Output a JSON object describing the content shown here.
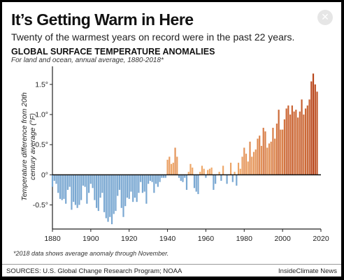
{
  "title": "It’s Getting Warm in Here",
  "subtitle": "Twenty of the warmest years on record were in the past 22 years.",
  "close_button": {
    "label": "✕",
    "icon": "close-icon"
  },
  "footnote": "*2018 data shows average anomaly through November.",
  "sources": "SOURCES: U.S. Global Change Research Program; NOAA",
  "credit": "InsideClimate News",
  "colors": {
    "cool": "#7aa8d2",
    "warm_light": "#f4b171",
    "warm_dark": "#b8451a"
  },
  "chart_data": {
    "type": "bar",
    "title": "GLOBAL SURFACE TEMPERATURE ANOMALIES",
    "subtitle": "For land and ocean, annual average, 1880-2018*",
    "ylabel": "Temperature difference from 20th century average (°F)",
    "xlabel": "",
    "xlim": [
      1880,
      2020
    ],
    "ylim": [
      -0.9,
      1.8
    ],
    "xticks": [
      1880,
      1900,
      1920,
      1940,
      1960,
      1980,
      2000,
      2020
    ],
    "yticks": [
      -0.5,
      0,
      0.5,
      1.0,
      1.5
    ],
    "ytick_labels": [
      "-0.5°",
      "0°",
      "0.5°",
      "1.0°",
      "1.5°"
    ],
    "grid": false,
    "x": [
      1880,
      1881,
      1882,
      1883,
      1884,
      1885,
      1886,
      1887,
      1888,
      1889,
      1890,
      1891,
      1892,
      1893,
      1894,
      1895,
      1896,
      1897,
      1898,
      1899,
      1900,
      1901,
      1902,
      1903,
      1904,
      1905,
      1906,
      1907,
      1908,
      1909,
      1910,
      1911,
      1912,
      1913,
      1914,
      1915,
      1916,
      1917,
      1918,
      1919,
      1920,
      1921,
      1922,
      1923,
      1924,
      1925,
      1926,
      1927,
      1928,
      1929,
      1930,
      1931,
      1932,
      1933,
      1934,
      1935,
      1936,
      1937,
      1938,
      1939,
      1940,
      1941,
      1942,
      1943,
      1944,
      1945,
      1946,
      1947,
      1948,
      1949,
      1950,
      1951,
      1952,
      1953,
      1954,
      1955,
      1956,
      1957,
      1958,
      1959,
      1960,
      1961,
      1962,
      1963,
      1964,
      1965,
      1966,
      1967,
      1968,
      1969,
      1970,
      1971,
      1972,
      1973,
      1974,
      1975,
      1976,
      1977,
      1978,
      1979,
      1980,
      1981,
      1982,
      1983,
      1984,
      1985,
      1986,
      1987,
      1988,
      1989,
      1990,
      1991,
      1992,
      1993,
      1994,
      1995,
      1996,
      1997,
      1998,
      1999,
      2000,
      2001,
      2002,
      2003,
      2004,
      2005,
      2006,
      2007,
      2008,
      2009,
      2010,
      2011,
      2012,
      2013,
      2014,
      2015,
      2016,
      2017,
      2018
    ],
    "values": [
      -0.2,
      -0.1,
      -0.15,
      -0.3,
      -0.4,
      -0.42,
      -0.4,
      -0.48,
      -0.25,
      -0.2,
      -0.58,
      -0.45,
      -0.5,
      -0.55,
      -0.5,
      -0.42,
      -0.18,
      -0.2,
      -0.48,
      -0.3,
      -0.15,
      -0.22,
      -0.42,
      -0.55,
      -0.6,
      -0.38,
      -0.3,
      -0.62,
      -0.72,
      -0.78,
      -0.7,
      -0.82,
      -0.65,
      -0.6,
      -0.35,
      -0.25,
      -0.55,
      -0.7,
      -0.52,
      -0.38,
      -0.4,
      -0.28,
      -0.45,
      -0.38,
      -0.45,
      -0.3,
      -0.12,
      -0.3,
      -0.28,
      -0.48,
      -0.15,
      -0.1,
      -0.12,
      -0.3,
      -0.15,
      -0.2,
      -0.12,
      -0.05,
      -0.05,
      -0.05,
      0.25,
      0.3,
      0.18,
      0.2,
      0.45,
      0.3,
      -0.05,
      -0.1,
      -0.12,
      -0.05,
      -0.25,
      0.05,
      0.18,
      0.12,
      -0.22,
      -0.28,
      -0.32,
      0.05,
      0.15,
      0.1,
      -0.05,
      0.08,
      0.1,
      0.12,
      -0.25,
      -0.15,
      0.0,
      0.05,
      -0.1,
      0.15,
      0.0,
      -0.15,
      0.0,
      0.2,
      -0.12,
      0.05,
      -0.18,
      0.2,
      0.1,
      0.3,
      0.45,
      0.35,
      0.22,
      0.55,
      0.3,
      0.38,
      0.42,
      0.6,
      0.65,
      0.48,
      0.78,
      0.72,
      0.45,
      0.52,
      0.55,
      0.78,
      0.6,
      0.85,
      1.08,
      0.75,
      0.75,
      0.92,
      1.1,
      1.15,
      1.0,
      1.15,
      1.05,
      1.08,
      0.95,
      1.05,
      1.25,
      1.0,
      1.1,
      1.15,
      1.25,
      1.55,
      1.68,
      1.5,
      1.38
    ],
    "color_scheme": "blue for negative anomalies, orange to dark red for positive anomalies"
  }
}
